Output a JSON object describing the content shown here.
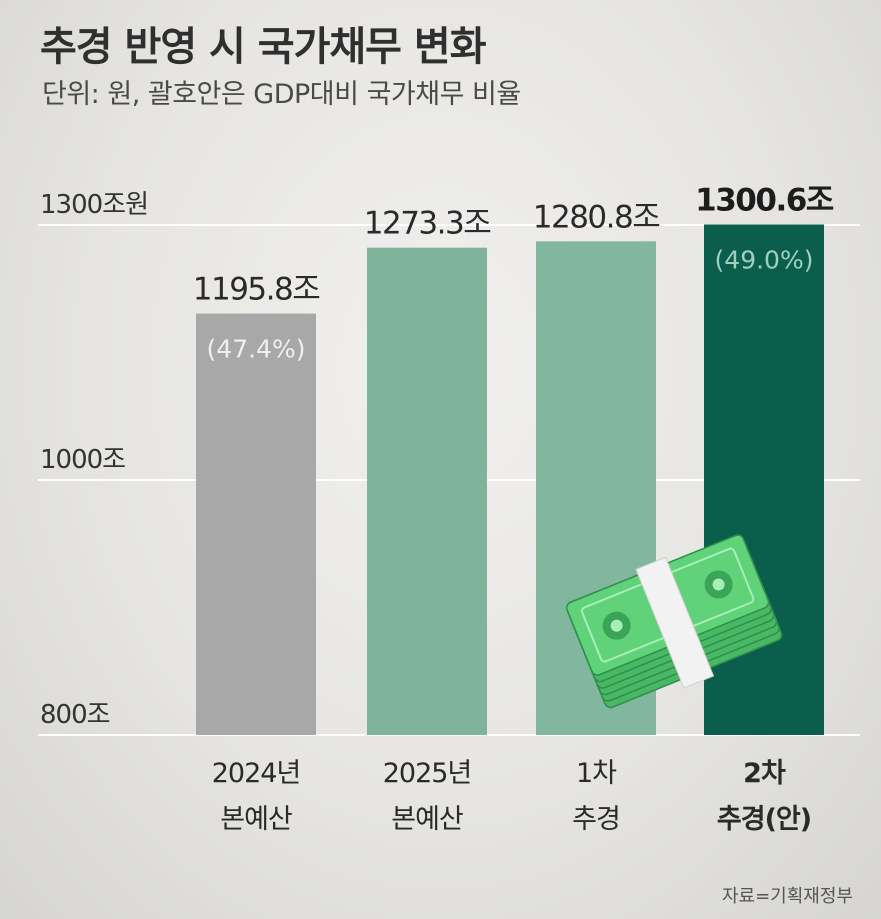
{
  "title": "추경 반영 시 국가채무 변화",
  "subtitle": "단위: 원, 괄호안은 GDP대비 국가채무 비율",
  "source": "자료=기획재정부",
  "colors": {
    "bar_2024": "#a8a8a8",
    "bar_2025": "#7fb39b",
    "bar_1st": "#80b79e",
    "bar_2nd": "#0c5e4c",
    "gridline": "#ffffff",
    "money_icon": "#5fd27a"
  },
  "chart_data": {
    "type": "bar",
    "categories": [
      [
        "2024년",
        "본예산"
      ],
      [
        "2025년",
        "본예산"
      ],
      [
        "1차",
        "추경"
      ],
      [
        "2차",
        "추경(안)"
      ]
    ],
    "values": [
      1195.8,
      1273.3,
      1280.8,
      1300.6
    ],
    "value_labels": [
      "1195.8조",
      "1273.3조",
      "1280.8조",
      "1300.6조"
    ],
    "ratio_labels": [
      "(47.4%)",
      "",
      "",
      "(49.0%)"
    ],
    "yticks": [
      {
        "value": 800,
        "label": "800조"
      },
      {
        "value": 1000,
        "label": "1000조"
      },
      {
        "value": 1300,
        "label": "1300조원"
      }
    ],
    "ylim": [
      800,
      1300.6
    ],
    "grid": true,
    "highlight_index": 3
  }
}
